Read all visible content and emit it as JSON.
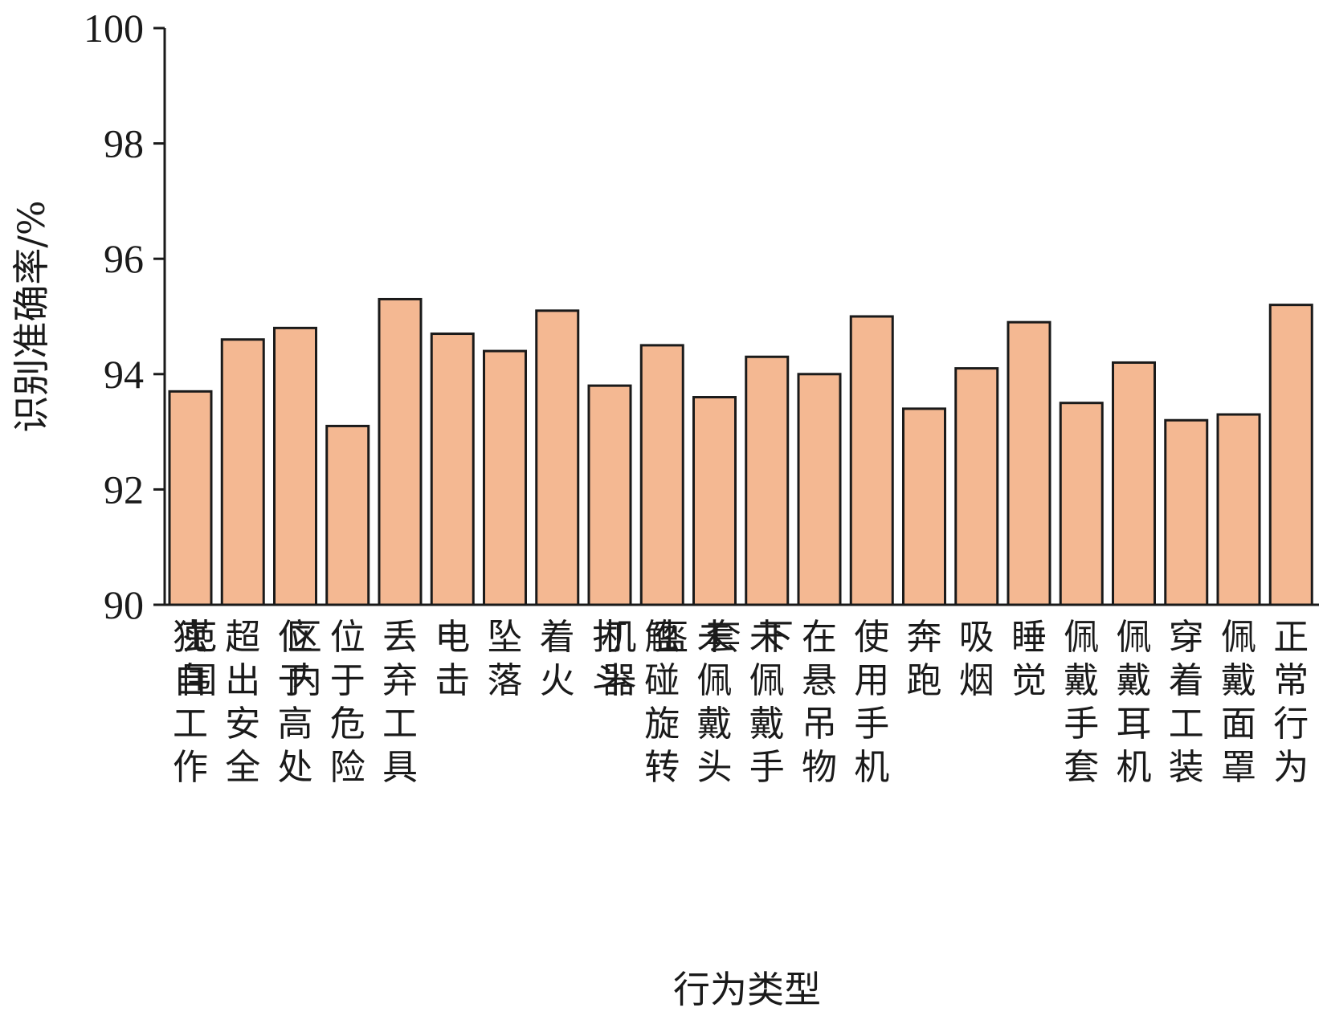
{
  "chart_data": {
    "type": "bar",
    "xlabel": "行为类型",
    "ylabel": "识别准确率/%",
    "ylim": [
      90,
      100
    ],
    "yticks": [
      90,
      92,
      94,
      96,
      98,
      100
    ],
    "grid": false,
    "legend": "none",
    "bar_color": "#f4b892",
    "edge_color": "#1a1a1a",
    "categories": [
      "独自工作",
      "超出安全范围",
      "位于高处",
      "位于危险区内",
      "丢弃工具",
      "电击",
      "坠落",
      "着火",
      "打斗",
      "触碰旋转机器",
      "未佩戴头盔",
      "未佩戴手套",
      "在悬吊物下",
      "使用手机",
      "奔跑",
      "吸烟",
      "睡觉",
      "佩戴手套",
      "佩戴耳机",
      "穿着工装",
      "佩戴面罩",
      "正常行为"
    ],
    "values": [
      93.7,
      94.6,
      94.8,
      93.1,
      95.3,
      94.7,
      94.4,
      95.1,
      93.8,
      94.5,
      93.6,
      94.3,
      94.0,
      95.0,
      93.4,
      94.1,
      94.9,
      93.5,
      94.2,
      93.2,
      93.3,
      95.2
    ]
  }
}
